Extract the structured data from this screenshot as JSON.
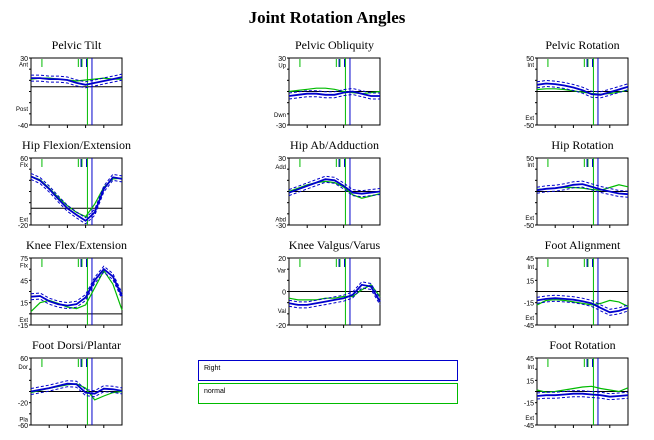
{
  "title": "Joint Rotation Angles",
  "legend": {
    "right": "Right",
    "normal": "normal"
  },
  "colors": {
    "right": "#0000cc",
    "normal": "#00bb00",
    "axis": "#000000"
  },
  "chart_data": [
    {
      "type": "line",
      "title": "Pelvic Tilt",
      "ylim": [
        -40,
        30
      ],
      "yticks": [
        {
          "value": 30,
          "label": "30"
        },
        {
          "value": -40,
          "label": "-40"
        }
      ],
      "dir_labels": [
        {
          "value": 24,
          "label": "Ant"
        },
        {
          "value": -22,
          "label": "Post"
        }
      ],
      "zero_line": 0,
      "vline_right": 67,
      "vline_normal": 62,
      "normal": {
        "x": [
          0,
          10,
          20,
          30,
          40,
          50,
          60,
          70,
          80,
          90,
          100
        ],
        "y": [
          8,
          9,
          9,
          8,
          7,
          6,
          7,
          8,
          9,
          8,
          8
        ]
      },
      "right": {
        "x": [
          0,
          10,
          20,
          30,
          40,
          50,
          60,
          70,
          80,
          90,
          100
        ],
        "y": [
          9,
          9,
          8,
          8,
          7,
          4,
          2,
          4,
          6,
          8,
          10
        ]
      }
    },
    {
      "type": "line",
      "title": "Pelvic Obliquity",
      "ylim": [
        -30,
        30
      ],
      "yticks": [
        {
          "value": 30,
          "label": "30"
        },
        {
          "value": -30,
          "label": "-30"
        }
      ],
      "dir_labels": [
        {
          "value": 24,
          "label": "Up"
        },
        {
          "value": -20,
          "label": "Dwn"
        }
      ],
      "zero_line": 0,
      "vline_right": 67,
      "vline_normal": 62,
      "normal": {
        "x": [
          0,
          10,
          20,
          30,
          40,
          50,
          60,
          70,
          80,
          90,
          100
        ],
        "y": [
          0,
          1,
          2,
          3,
          3,
          2,
          0,
          -1,
          -2,
          -1,
          0
        ]
      },
      "right": {
        "x": [
          0,
          10,
          20,
          30,
          40,
          50,
          60,
          70,
          80,
          90,
          100
        ],
        "y": [
          -4,
          -3,
          -2,
          -2,
          -3,
          -3,
          -1,
          0,
          -2,
          -4,
          -4
        ]
      }
    },
    {
      "type": "line",
      "title": "Pelvic Rotation",
      "ylim": [
        -50,
        50
      ],
      "yticks": [
        {
          "value": 50,
          "label": "50"
        },
        {
          "value": -50,
          "label": "-50"
        }
      ],
      "dir_labels": [
        {
          "value": 41,
          "label": "Int"
        },
        {
          "value": -38,
          "label": "Ext"
        }
      ],
      "zero_line": 0,
      "vline_right": 67,
      "vline_normal": 62,
      "normal": {
        "x": [
          0,
          10,
          20,
          30,
          40,
          50,
          60,
          70,
          80,
          90,
          100
        ],
        "y": [
          3,
          4,
          4,
          3,
          1,
          -1,
          -3,
          -4,
          -3,
          -1,
          2
        ]
      },
      "right": {
        "x": [
          0,
          10,
          20,
          30,
          40,
          50,
          60,
          70,
          80,
          90,
          100
        ],
        "y": [
          10,
          12,
          11,
          9,
          6,
          2,
          -4,
          -5,
          -1,
          3,
          7
        ]
      }
    },
    {
      "type": "line",
      "title": "Hip Flexion/Extension",
      "ylim": [
        -20,
        60
      ],
      "yticks": [
        {
          "value": 60,
          "label": "60"
        },
        {
          "value": -20,
          "label": "-20"
        }
      ],
      "dir_labels": [
        {
          "value": 53,
          "label": "Flx"
        },
        {
          "value": -12,
          "label": "Ext"
        }
      ],
      "zero_line": 0,
      "vline_right": 67,
      "vline_normal": 62,
      "normal": {
        "x": [
          0,
          10,
          20,
          30,
          40,
          50,
          60,
          70,
          80,
          90,
          100
        ],
        "y": [
          38,
          34,
          24,
          13,
          3,
          -5,
          -10,
          5,
          25,
          35,
          36
        ]
      },
      "right": {
        "x": [
          0,
          10,
          20,
          30,
          40,
          50,
          60,
          70,
          80,
          90,
          100
        ],
        "y": [
          38,
          33,
          23,
          11,
          0,
          -8,
          -15,
          -5,
          23,
          37,
          35
        ]
      }
    },
    {
      "type": "line",
      "title": "Hip Ab/Adduction",
      "ylim": [
        -30,
        30
      ],
      "yticks": [
        {
          "value": 30,
          "label": "30"
        },
        {
          "value": -30,
          "label": "-30"
        }
      ],
      "dir_labels": [
        {
          "value": 23,
          "label": "Add"
        },
        {
          "value": -24,
          "label": "Abd"
        }
      ],
      "zero_line": 0,
      "vline_right": 67,
      "vline_normal": 62,
      "normal": {
        "x": [
          0,
          10,
          20,
          30,
          40,
          50,
          60,
          70,
          80,
          90,
          100
        ],
        "y": [
          0,
          3,
          6,
          8,
          9,
          8,
          4,
          -3,
          -6,
          -4,
          -2
        ]
      },
      "right": {
        "x": [
          0,
          10,
          20,
          30,
          40,
          50,
          60,
          70,
          80,
          90,
          100
        ],
        "y": [
          -1,
          2,
          5,
          8,
          11,
          10,
          5,
          -1,
          -2,
          -1,
          0
        ]
      }
    },
    {
      "type": "line",
      "title": "Hip Rotation",
      "ylim": [
        -50,
        50
      ],
      "yticks": [
        {
          "value": 50,
          "label": "50"
        },
        {
          "value": -50,
          "label": "-50"
        }
      ],
      "dir_labels": [
        {
          "value": 41,
          "label": "Int"
        },
        {
          "value": -38,
          "label": "Ext"
        }
      ],
      "zero_line": 0,
      "vline_right": 67,
      "vline_normal": 62,
      "normal": {
        "x": [
          0,
          10,
          20,
          30,
          40,
          50,
          60,
          70,
          80,
          90,
          100
        ],
        "y": [
          3,
          4,
          5,
          6,
          6,
          5,
          3,
          2,
          6,
          10,
          7
        ]
      },
      "right": {
        "x": [
          0,
          10,
          20,
          30,
          40,
          50,
          60,
          70,
          80,
          90,
          100
        ],
        "y": [
          2,
          4,
          5,
          7,
          10,
          11,
          7,
          3,
          0,
          -3,
          -4
        ]
      }
    },
    {
      "type": "line",
      "title": "Knee Flex/Extension",
      "ylim": [
        -15,
        75
      ],
      "yticks": [
        {
          "value": 75,
          "label": "75"
        },
        {
          "value": 45,
          "label": "45"
        },
        {
          "value": 15,
          "label": "15"
        },
        {
          "value": -15,
          "label": "-15"
        }
      ],
      "dir_labels": [
        {
          "value": 66,
          "label": "Flx"
        },
        {
          "value": -7,
          "label": "Ext"
        }
      ],
      "zero_line": 0,
      "vline_right": 67,
      "vline_normal": 62,
      "normal": {
        "x": [
          0,
          10,
          20,
          30,
          40,
          50,
          60,
          70,
          80,
          90,
          100
        ],
        "y": [
          3,
          15,
          18,
          14,
          9,
          7,
          12,
          35,
          58,
          40,
          5
        ]
      },
      "right": {
        "x": [
          0,
          10,
          20,
          30,
          40,
          50,
          60,
          70,
          80,
          90,
          100
        ],
        "y": [
          23,
          24,
          17,
          13,
          11,
          13,
          22,
          45,
          60,
          50,
          24
        ]
      }
    },
    {
      "type": "line",
      "title": "Knee Valgus/Varus",
      "ylim": [
        -20,
        20
      ],
      "yticks": [
        {
          "value": 20,
          "label": "20"
        },
        {
          "value": 0,
          "label": "0"
        },
        {
          "value": -20,
          "label": "-20"
        }
      ],
      "dir_labels": [
        {
          "value": 13,
          "label": "Var"
        },
        {
          "value": -11,
          "label": "Val"
        }
      ],
      "zero_line": 0,
      "vline_right": 67,
      "vline_normal": 62,
      "normal": {
        "x": [
          0,
          10,
          20,
          30,
          40,
          50,
          60,
          70,
          80,
          90,
          100
        ],
        "y": [
          -4,
          -5,
          -5,
          -5,
          -4,
          -4,
          -3,
          -3,
          1,
          4,
          -3
        ]
      },
      "right": {
        "x": [
          0,
          10,
          20,
          30,
          40,
          50,
          60,
          70,
          80,
          90,
          100
        ],
        "y": [
          -7,
          -8,
          -8,
          -7,
          -6,
          -5,
          -4,
          -2,
          4,
          3,
          -6
        ]
      }
    },
    {
      "type": "line",
      "title": "Foot Alignment",
      "ylim": [
        -45,
        45
      ],
      "yticks": [
        {
          "value": 45,
          "label": "45"
        },
        {
          "value": 15,
          "label": "15"
        },
        {
          "value": -15,
          "label": "-15"
        },
        {
          "value": -45,
          "label": "-45"
        }
      ],
      "dir_labels": [
        {
          "value": 34,
          "label": "Int"
        },
        {
          "value": -34,
          "label": "Ext"
        }
      ],
      "zero_line": 0,
      "vline_right": 67,
      "vline_normal": 62,
      "normal": {
        "x": [
          0,
          10,
          20,
          30,
          40,
          50,
          60,
          70,
          80,
          90,
          100
        ],
        "y": [
          -18,
          -12,
          -11,
          -12,
          -14,
          -16,
          -18,
          -16,
          -12,
          -14,
          -20
        ]
      },
      "right": {
        "x": [
          0,
          10,
          20,
          30,
          40,
          50,
          60,
          70,
          80,
          90,
          100
        ],
        "y": [
          -12,
          -10,
          -9,
          -10,
          -11,
          -13,
          -16,
          -22,
          -28,
          -26,
          -22
        ]
      }
    },
    {
      "type": "line",
      "title": "Foot Dorsi/Plantar",
      "ylim": [
        -60,
        60
      ],
      "yticks": [
        {
          "value": 60,
          "label": "60"
        },
        {
          "value": -20,
          "label": "-20"
        },
        {
          "value": -60,
          "label": "-60"
        }
      ],
      "dir_labels": [
        {
          "value": 46,
          "label": "Dor"
        },
        {
          "value": -48,
          "label": "Pla"
        }
      ],
      "zero_line": 0,
      "vline_right": 67,
      "vline_normal": 62,
      "normal": {
        "x": [
          0,
          10,
          20,
          30,
          40,
          50,
          60,
          70,
          80,
          90,
          100
        ],
        "y": [
          -2,
          2,
          6,
          9,
          12,
          14,
          6,
          -15,
          -8,
          -2,
          0
        ]
      },
      "right": {
        "x": [
          0,
          10,
          20,
          30,
          40,
          50,
          60,
          70,
          80,
          90,
          100
        ],
        "y": [
          0,
          3,
          6,
          10,
          14,
          13,
          -2,
          -4,
          5,
          4,
          1
        ]
      }
    },
    {
      "type": "line",
      "title": "Foot Rotation",
      "ylim": [
        -45,
        45
      ],
      "yticks": [
        {
          "value": 45,
          "label": "45"
        },
        {
          "value": 15,
          "label": "15"
        },
        {
          "value": -15,
          "label": "-15"
        },
        {
          "value": -45,
          "label": "-45"
        }
      ],
      "dir_labels": [
        {
          "value": 34,
          "label": "Int"
        },
        {
          "value": -34,
          "label": "Ext"
        }
      ],
      "zero_line": 0,
      "vline_right": 67,
      "vline_normal": 62,
      "normal": {
        "x": [
          0,
          10,
          20,
          30,
          40,
          50,
          60,
          70,
          80,
          90,
          100
        ],
        "y": [
          2,
          -1,
          0,
          2,
          4,
          6,
          7,
          4,
          2,
          0,
          5
        ]
      },
      "right": {
        "x": [
          0,
          10,
          20,
          30,
          40,
          50,
          60,
          70,
          80,
          90,
          100
        ],
        "y": [
          -6,
          -5,
          -5,
          -4,
          -3,
          -3,
          -4,
          -5,
          -7,
          -6,
          -5
        ]
      }
    }
  ]
}
